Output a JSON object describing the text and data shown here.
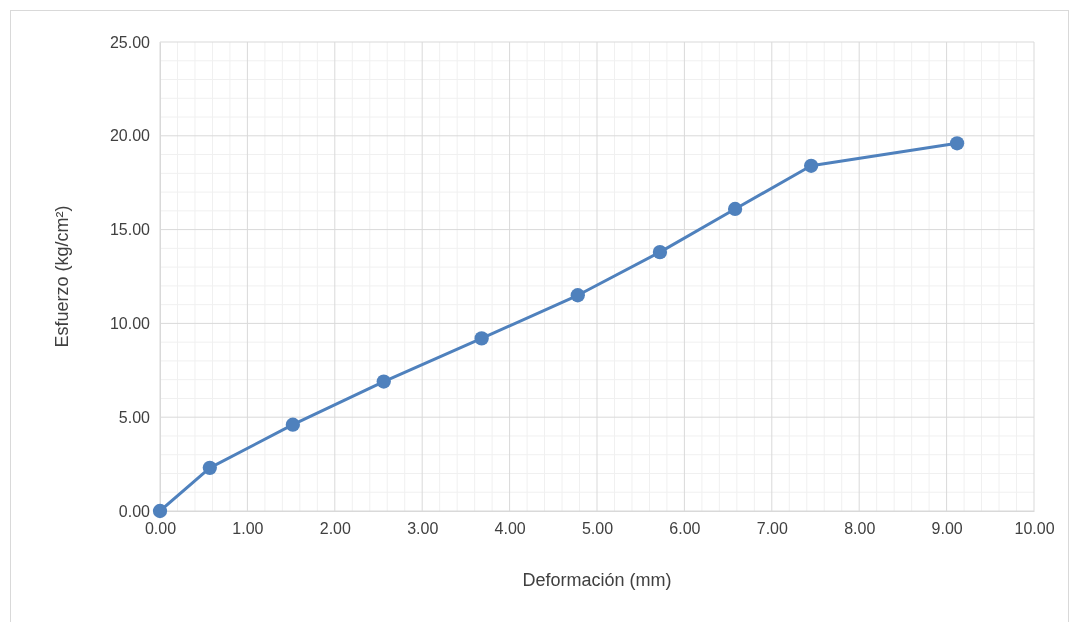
{
  "chart_data": {
    "type": "line",
    "xlabel": "Deformación (mm)",
    "ylabel": "Esfuerzo (kg/cm²)",
    "x": [
      0,
      0.57,
      1.52,
      2.56,
      3.68,
      4.78,
      5.72,
      6.58,
      7.45,
      9.12
    ],
    "series": [
      {
        "color": "#4f81bd",
        "values": [
          0,
          2.3,
          4.6,
          6.9,
          9.2,
          11.5,
          13.8,
          16.1,
          18.4,
          19.6
        ]
      }
    ],
    "xlim": [
      0,
      10
    ],
    "xticks": [
      {
        "value": 0,
        "label": "0.00"
      },
      {
        "value": 1,
        "label": "1.00"
      },
      {
        "value": 2,
        "label": "2.00"
      },
      {
        "value": 3,
        "label": "3.00"
      },
      {
        "value": 4,
        "label": "4.00"
      },
      {
        "value": 5,
        "label": "5.00"
      },
      {
        "value": 6,
        "label": "6.00"
      },
      {
        "value": 7,
        "label": "7.00"
      },
      {
        "value": 8,
        "label": "8.00"
      },
      {
        "value": 9,
        "label": "9.00"
      },
      {
        "value": 10,
        "label": "10.00"
      }
    ],
    "ylim": [
      0,
      25
    ],
    "yticks": [
      {
        "value": 0,
        "label": "0.00"
      },
      {
        "value": 5,
        "label": "5.00"
      },
      {
        "value": 10,
        "label": "10.00"
      },
      {
        "value": 15,
        "label": "15.00"
      },
      {
        "value": 20,
        "label": "20.00"
      },
      {
        "value": 25,
        "label": "25.00"
      }
    ],
    "grid": true,
    "marker": "circle",
    "line_style": "solid"
  }
}
